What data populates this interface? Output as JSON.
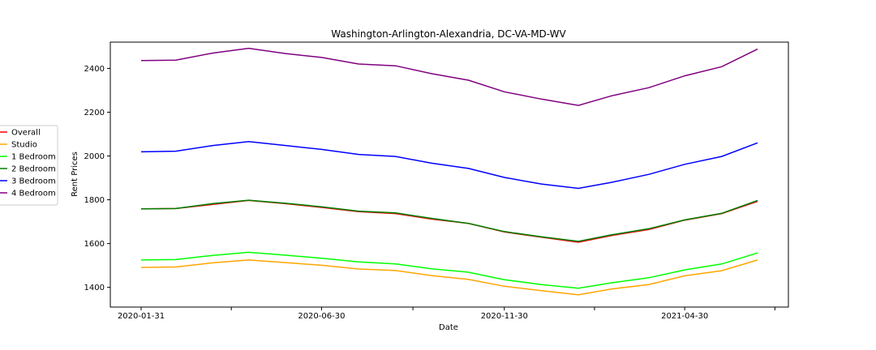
{
  "chart_data": {
    "type": "line",
    "title": "Washington-Arlington-Alexandria, DC-VA-MD-WV",
    "xlabel": "Date",
    "ylabel": "Rent Prices",
    "x": [
      "2020-01-31",
      "2020-02-29",
      "2020-03-31",
      "2020-04-30",
      "2020-05-31",
      "2020-06-30",
      "2020-07-31",
      "2020-08-31",
      "2020-09-30",
      "2020-10-31",
      "2020-11-30",
      "2020-12-31",
      "2021-01-31",
      "2021-02-28",
      "2021-03-31",
      "2021-04-30",
      "2021-05-31",
      "2021-06-30"
    ],
    "xticks": [
      "2020-01-31",
      "2020-06-30",
      "2020-11-30",
      "2021-04-30"
    ],
    "yticks": [
      1400,
      1600,
      1800,
      2000,
      2200,
      2400
    ],
    "ylim": [
      1310,
      2520
    ],
    "grid": false,
    "legend_position": "left",
    "series": [
      {
        "name": "Overall",
        "color": "#ff0000",
        "values": [
          1759,
          1760,
          1779,
          1797,
          1782,
          1765,
          1746,
          1737,
          1712,
          1692,
          1653,
          1629,
          1606,
          1637,
          1664,
          1707,
          1737,
          1793
        ]
      },
      {
        "name": "Studio",
        "color": "#ffa500",
        "values": [
          1491,
          1493,
          1512,
          1525,
          1513,
          1501,
          1484,
          1477,
          1454,
          1436,
          1405,
          1385,
          1366,
          1393,
          1413,
          1453,
          1476,
          1525
        ]
      },
      {
        "name": "1 Bedroom",
        "color": "#00ff00",
        "values": [
          1525,
          1527,
          1546,
          1560,
          1547,
          1533,
          1516,
          1507,
          1485,
          1469,
          1435,
          1413,
          1396,
          1421,
          1444,
          1480,
          1507,
          1557
        ]
      },
      {
        "name": "2 Bedroom",
        "color": "#008000",
        "values": [
          1758,
          1760,
          1783,
          1798,
          1784,
          1768,
          1748,
          1740,
          1715,
          1692,
          1655,
          1631,
          1610,
          1640,
          1668,
          1708,
          1738,
          1797
        ]
      },
      {
        "name": "3 Bedroom",
        "color": "#0000ff",
        "values": [
          2019,
          2022,
          2048,
          2066,
          2048,
          2030,
          2007,
          1998,
          1967,
          1943,
          1902,
          1872,
          1852,
          1880,
          1916,
          1962,
          1998,
          2060
        ]
      },
      {
        "name": "4 Bedroom",
        "color": "#800080",
        "values": [
          2436,
          2438,
          2470,
          2492,
          2468,
          2450,
          2420,
          2412,
          2376,
          2346,
          2293,
          2260,
          2231,
          2275,
          2312,
          2366,
          2408,
          2488
        ]
      }
    ]
  }
}
